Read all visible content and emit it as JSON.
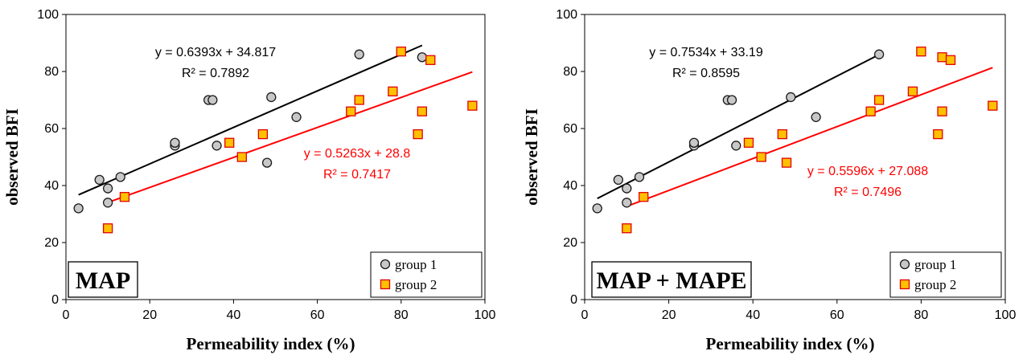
{
  "colors": {
    "group1_fill": "#c8c8c8",
    "group1_stroke": "#1a1a1a",
    "group2_fill": "#ffc000",
    "group2_stroke": "#e00000",
    "fit1": "#000000",
    "fit2": "#ff0000"
  },
  "chart_data": [
    {
      "type": "scatter",
      "panel_label": "MAP",
      "xlabel": "Permeability index (%)",
      "ylabel": "observed BFI",
      "xlim": [
        0,
        100
      ],
      "ylim": [
        0,
        100
      ],
      "xticks": [
        "0",
        "20",
        "40",
        "60",
        "80",
        "100"
      ],
      "yticks": [
        "0",
        "20",
        "40",
        "60",
        "80",
        "100"
      ],
      "legend_position": "bottom-right",
      "series": [
        {
          "name": "group 1",
          "marker": "circle",
          "x": [
            3,
            8,
            10,
            10,
            13,
            26,
            26,
            34,
            35,
            36,
            48,
            49,
            55,
            70,
            85
          ],
          "y": [
            32,
            42,
            39,
            34,
            43,
            54,
            55,
            70,
            70,
            54,
            48,
            71,
            64,
            86,
            85
          ],
          "trendline": {
            "slope": 0.6393,
            "intercept": 34.817,
            "x_range": [
              3,
              85
            ],
            "equation": "y = 0.6393x + 34.817",
            "r2": "R² = 0.7892"
          }
        },
        {
          "name": "group 2",
          "marker": "square",
          "x": [
            10,
            14,
            39,
            42,
            47,
            68,
            70,
            78,
            80,
            84,
            85,
            87,
            97
          ],
          "y": [
            25,
            36,
            55,
            50,
            58,
            66,
            70,
            73,
            87,
            58,
            66,
            84,
            68
          ],
          "trendline": {
            "slope": 0.5263,
            "intercept": 28.8,
            "x_range": [
              10,
              97
            ],
            "equation": "y = 0.5263x + 28.8",
            "r2": "R² = 0.7417"
          }
        }
      ]
    },
    {
      "type": "scatter",
      "panel_label": "MAP + MAPE",
      "xlabel": "Permeability index (%)",
      "ylabel": "observed BFI",
      "xlim": [
        0,
        100
      ],
      "ylim": [
        0,
        100
      ],
      "xticks": [
        "0",
        "20",
        "40",
        "60",
        "80",
        "100"
      ],
      "yticks": [
        "0",
        "20",
        "40",
        "60",
        "80",
        "100"
      ],
      "legend_position": "bottom-right",
      "series": [
        {
          "name": "group 1",
          "marker": "circle",
          "x": [
            3,
            8,
            10,
            10,
            13,
            26,
            26,
            34,
            35,
            36,
            49,
            55,
            70
          ],
          "y": [
            32,
            42,
            39,
            34,
            43,
            54,
            55,
            70,
            70,
            54,
            71,
            64,
            86
          ],
          "trendline": {
            "slope": 0.7534,
            "intercept": 33.19,
            "x_range": [
              3,
              70
            ],
            "equation": "y = 0.7534x + 33.19",
            "r2": "R² = 0.8595"
          }
        },
        {
          "name": "group 2",
          "marker": "square",
          "x": [
            10,
            14,
            39,
            42,
            47,
            48,
            68,
            70,
            78,
            80,
            84,
            85,
            85,
            87,
            97
          ],
          "y": [
            25,
            36,
            55,
            50,
            58,
            48,
            66,
            70,
            73,
            87,
            58,
            66,
            85,
            84,
            68
          ],
          "trendline": {
            "slope": 0.5596,
            "intercept": 27.088,
            "x_range": [
              10,
              97
            ],
            "equation": "y = 0.5596x + 27.088",
            "r2": "R² = 0.7496"
          }
        }
      ]
    }
  ]
}
